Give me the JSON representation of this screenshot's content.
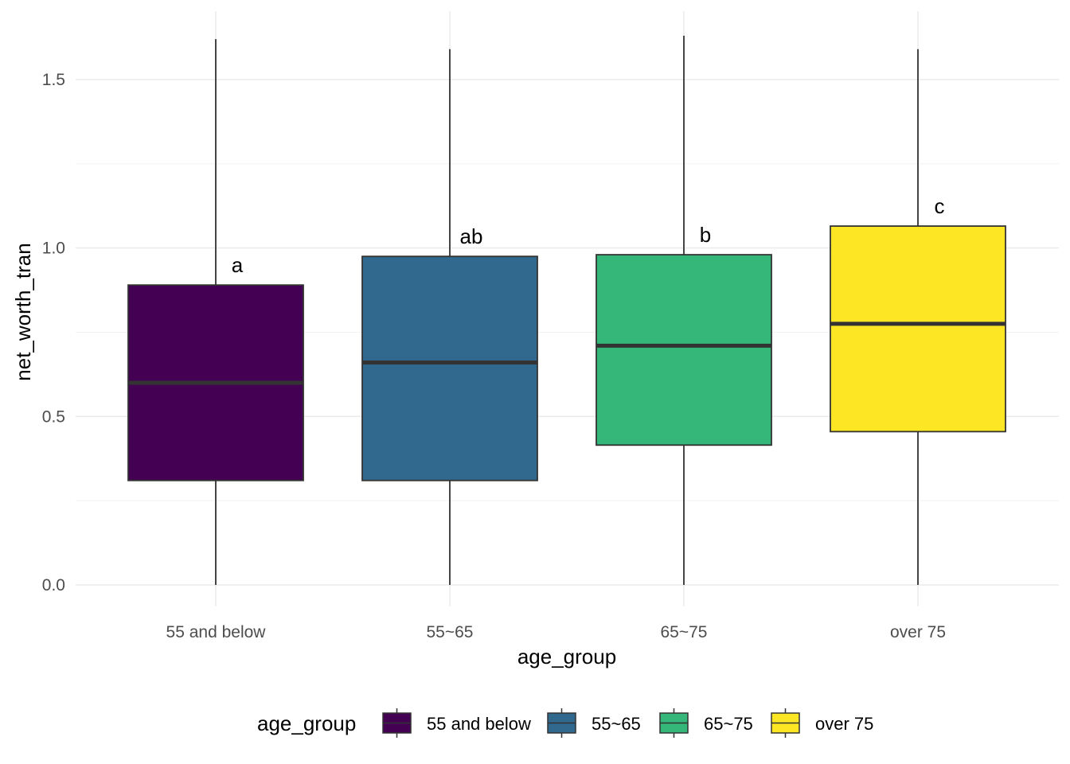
{
  "chart_data": {
    "type": "box",
    "xlabel": "age_group",
    "ylabel": "net_worth_tran",
    "ylim": [
      -0.06,
      1.62
    ],
    "yticks": [
      0.0,
      0.5,
      1.0,
      1.5
    ],
    "ytick_labels": [
      "0.0",
      "0.5",
      "1.0",
      "1.5"
    ],
    "grid": true,
    "categories": [
      "55 and below",
      "55~65",
      "65~75",
      "over 75"
    ],
    "boxes": [
      {
        "category": "55 and below",
        "min": 0.0,
        "q1": 0.31,
        "median": 0.6,
        "q3": 0.89,
        "max": 1.62,
        "label": "a",
        "color": "#440154"
      },
      {
        "category": "55~65",
        "min": 0.0,
        "q1": 0.31,
        "median": 0.66,
        "q3": 0.975,
        "max": 1.59,
        "label": "ab",
        "color": "#31688E"
      },
      {
        "category": "65~75",
        "min": 0.0,
        "q1": 0.415,
        "median": 0.71,
        "q3": 0.98,
        "max": 1.63,
        "label": "b",
        "color": "#35B779"
      },
      {
        "category": "over 75",
        "min": 0.0,
        "q1": 0.455,
        "median": 0.775,
        "q3": 1.065,
        "max": 1.59,
        "label": "c",
        "color": "#FDE725"
      }
    ],
    "legend": {
      "title": "age_group",
      "position": "bottom",
      "entries": [
        "55 and below",
        "55~65",
        "65~75",
        "over 75"
      ]
    }
  }
}
